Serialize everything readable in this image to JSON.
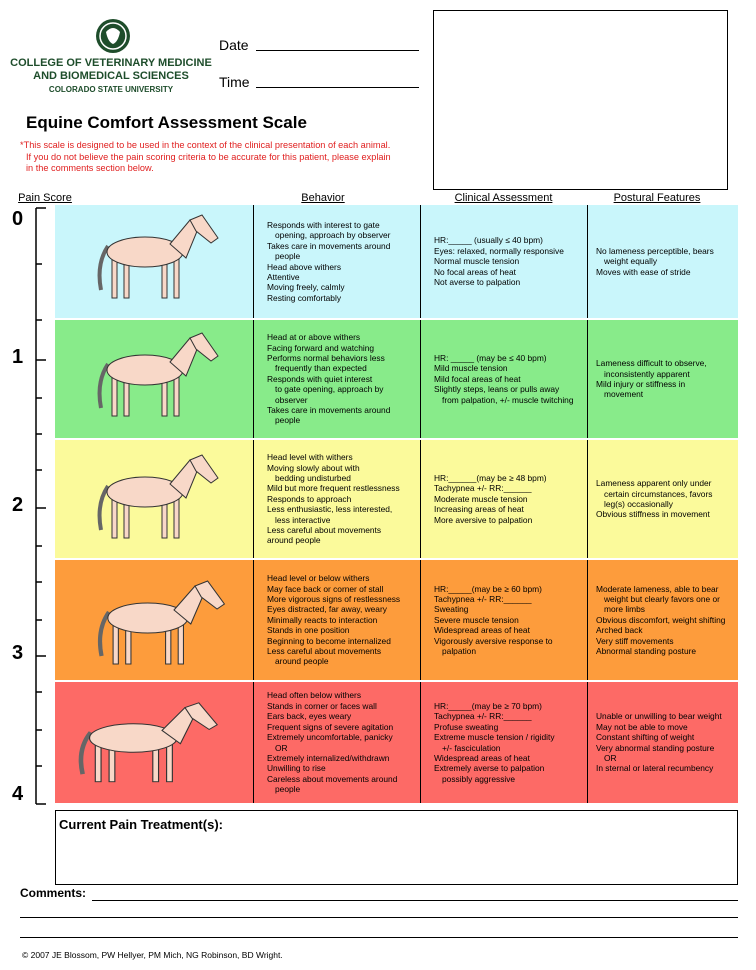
{
  "header": {
    "college": [
      "COLLEGE OF VETERINARY MEDICINE",
      "AND BIOMEDICAL SCIENCES"
    ],
    "university": "COLORADO STATE UNIVERSITY",
    "fields": [
      "Date",
      "Time"
    ]
  },
  "title": "Equine Comfort Assessment Scale",
  "note": [
    "*This scale is designed to be used in the context of the clinical presentation of each animal.",
    "If you do not believe the pain scoring criteria to be accurate for this patient, please explain",
    "in the comments section below."
  ],
  "columns": [
    "Pain Score",
    "Behavior",
    "Clinical Assessment",
    "Postural Features"
  ],
  "rows": [
    {
      "score": 0,
      "color": "#c9f6fb",
      "behavior": [
        [
          "Responds with interest to gate",
          "opening, approach by observer"
        ],
        [
          "Takes care in movements around",
          "people"
        ],
        [
          "Head above withers"
        ],
        [
          "Attentive"
        ],
        [
          "Moving freely, calmly"
        ],
        [
          "Resting comfortably"
        ]
      ],
      "clinical": [
        [
          "HR:_____ (usually ≤ 40 bpm)"
        ],
        [
          "Eyes: relaxed, normally responsive"
        ],
        [
          "Normal muscle tension"
        ],
        [
          "No focal areas of heat"
        ],
        [
          "Not averse to palpation"
        ]
      ],
      "postural": [
        [
          "No lameness perceptible, bears",
          "weight equally"
        ],
        [
          "Moves with ease of stride"
        ]
      ]
    },
    {
      "score": 1,
      "color": "#88eb8a",
      "behavior": [
        [
          "Head at or above withers"
        ],
        [
          "Facing forward and watching"
        ],
        [
          "Performs normal behaviors less",
          "frequently than expected"
        ],
        [
          "Responds with quiet interest",
          "to gate opening, approach by",
          "observer"
        ],
        [
          "Takes care in movements around",
          "people"
        ]
      ],
      "clinical": [
        [
          "HR: _____ (may be ≤ 40 bpm)"
        ],
        [
          "Mild muscle tension"
        ],
        [
          "Mild focal areas of heat"
        ],
        [
          "Slightly steps, leans or pulls away",
          "from palpation, +/- muscle twitching"
        ]
      ],
      "postural": [
        [
          "Lameness difficult to observe,",
          "inconsistently apparent"
        ],
        [
          "Mild injury or stiffness in",
          "movement"
        ]
      ]
    },
    {
      "score": 2,
      "color": "#fbfa9b",
      "behavior": [
        [
          "Head level with withers"
        ],
        [
          "Moving slowly about with",
          "bedding undisturbed"
        ],
        [
          "Mild but more frequent restlessness"
        ],
        [
          "Responds to approach"
        ],
        [
          "Less enthusiastic, less interested,",
          "less interactive"
        ],
        [
          "Less careful about movements"
        ],
        [
          "around people"
        ]
      ],
      "clinical": [
        [
          "HR:______(may be ≥ 48 bpm)"
        ],
        [
          "Tachypnea +/-  RR:______"
        ],
        [
          "Moderate muscle tension"
        ],
        [
          "Increasing areas of heat"
        ],
        [
          "More aversive to palpation"
        ]
      ],
      "postural": [
        [
          "Lameness apparent only under",
          "certain circumstances, favors",
          "leg(s) occasionally"
        ],
        [
          "Obvious stiffness in movement"
        ]
      ]
    },
    {
      "score": 3,
      "color": "#fd9c3c",
      "behavior": [
        [
          "Head level or below withers"
        ],
        [
          "May face back or corner of stall"
        ],
        [
          "More vigorous signs of restlessness"
        ],
        [
          "Eyes distracted, far away, weary"
        ],
        [
          "Minimally reacts to  interaction"
        ],
        [
          "Stands in one position"
        ],
        [
          "Beginning to become internalized"
        ],
        [
          "Less careful about movements",
          "around people"
        ]
      ],
      "clinical": [
        [
          "HR:_____(may be ≥ 60 bpm)"
        ],
        [
          "Tachypnea +/- RR:______"
        ],
        [
          "Sweating"
        ],
        [
          "Severe muscle tension"
        ],
        [
          "Widespread areas of heat"
        ],
        [
          "Vigorously aversive response to",
          "palpation"
        ]
      ],
      "postural": [
        [
          "Moderate lameness, able to bear",
          "weight but clearly favors one or",
          "more limbs"
        ],
        [
          "Obvious discomfort, weight shifting"
        ],
        [
          "Arched back"
        ],
        [
          "Very stiff movements"
        ],
        [
          "Abnormal standing posture"
        ]
      ]
    },
    {
      "score": 4,
      "color": "#fd6a66",
      "behavior": [
        [
          "Head often below withers"
        ],
        [
          "Stands in corner or faces wall"
        ],
        [
          "Ears back, eyes weary"
        ],
        [
          "Frequent signs of severe agitation"
        ],
        [
          "Extremely uncomfortable, panicky",
          "OR"
        ],
        [
          "Extremely internalized/withdrawn"
        ],
        [
          "Unwilling to rise"
        ],
        [
          "Careless about movements around",
          "people"
        ]
      ],
      "clinical": [
        [
          "HR:_____(may be ≥ 70 bpm)"
        ],
        [
          "Tachypnea +/-   RR:______"
        ],
        [
          "Profuse sweating"
        ],
        [
          "Extreme muscle tension / rigidity",
          "+/- fasciculation"
        ],
        [
          "Widespread areas of heat"
        ],
        [
          "Extremely averse to palpation",
          "possibly aggressive"
        ]
      ],
      "postural": [
        [
          "Unable or unwilling to bear weight"
        ],
        [
          "May not be able to move"
        ],
        [
          "Constant shifting of weight"
        ],
        [
          "Very abnormal standing posture",
          "OR"
        ],
        [
          "In sternal or lateral recumbency"
        ]
      ]
    }
  ],
  "treatment_label": "Current Pain Treatment(s):",
  "comments_label": "Comments:",
  "footer": "© 2007 JE Blossom, PW Hellyer, PM Mich, NG Robinson, BD Wright."
}
